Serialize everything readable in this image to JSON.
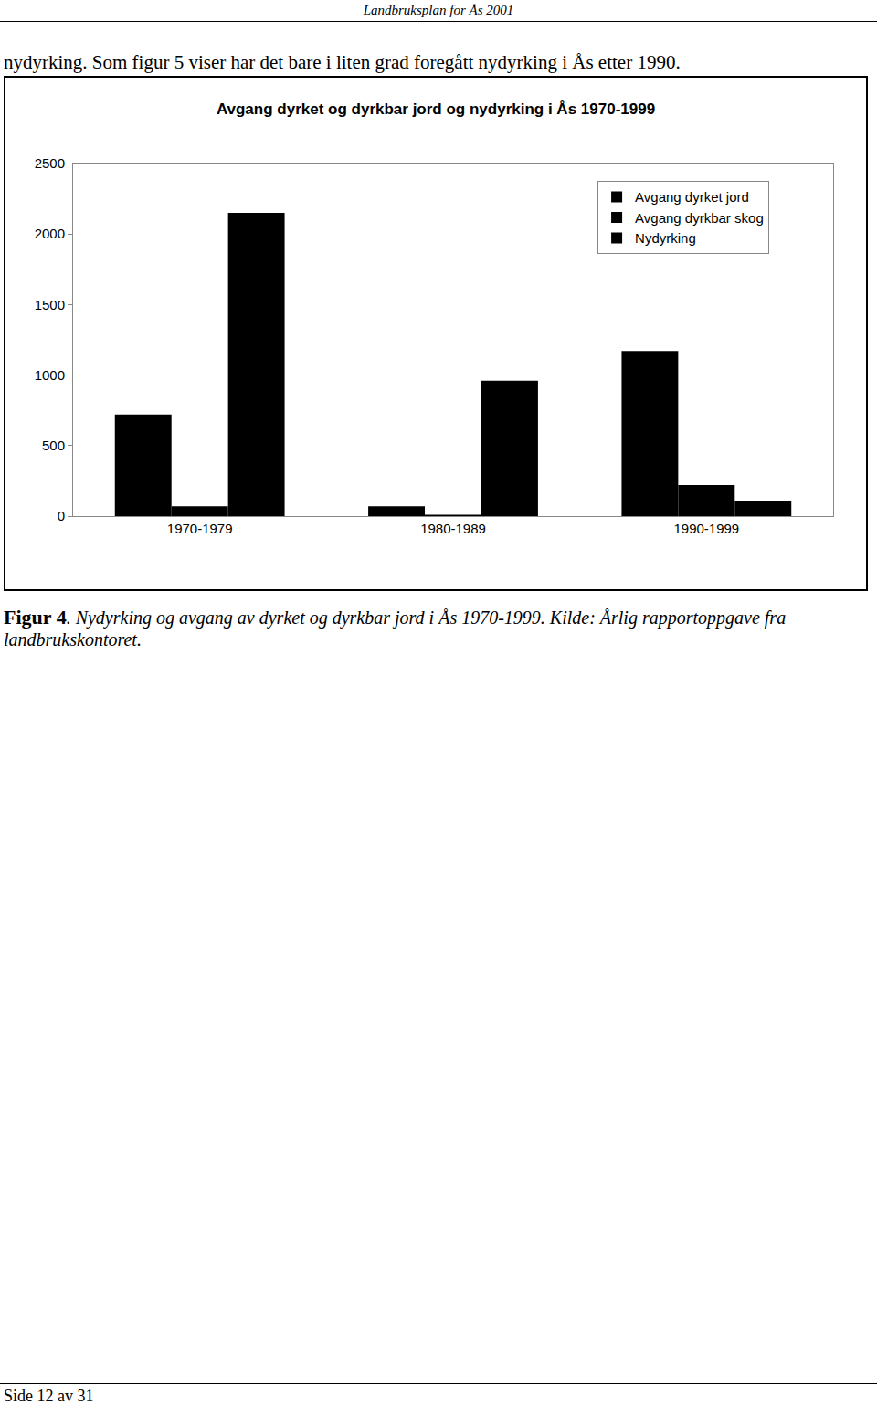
{
  "header": "Landbruksplan for Ås 2001",
  "intro": "nydyrking. Som figur 5 viser har det bare i liten grad foregått nydyrking i Ås etter 1990.",
  "chart_data": {
    "type": "bar",
    "title": "Avgang dyrket og dyrkbar jord og nydyrking i Ås 1970-1999",
    "categories": [
      "1970-1979",
      "1980-1989",
      "1990-1999"
    ],
    "series": [
      {
        "name": "Avgang dyrket jord",
        "color": "#000000",
        "values": [
          720,
          70,
          1170
        ]
      },
      {
        "name": "Avgang dyrkbar skog",
        "color": "#000000",
        "values": [
          70,
          10,
          220
        ]
      },
      {
        "name": "Nydyrking",
        "color": "#000000",
        "values": [
          2150,
          960,
          110
        ]
      }
    ],
    "ylim": [
      0,
      2500
    ],
    "yticks": [
      0,
      500,
      1000,
      1500,
      2000,
      2500
    ],
    "grid": false,
    "legend": "upper right"
  },
  "caption": {
    "label": "Figur 4",
    "text": ". Nydyrking og avgang av dyrket og dyrkbar jord i Ås 1970-1999. Kilde: Årlig rapportoppgave fra landbrukskontoret."
  },
  "footer": "Side 12 av 31"
}
